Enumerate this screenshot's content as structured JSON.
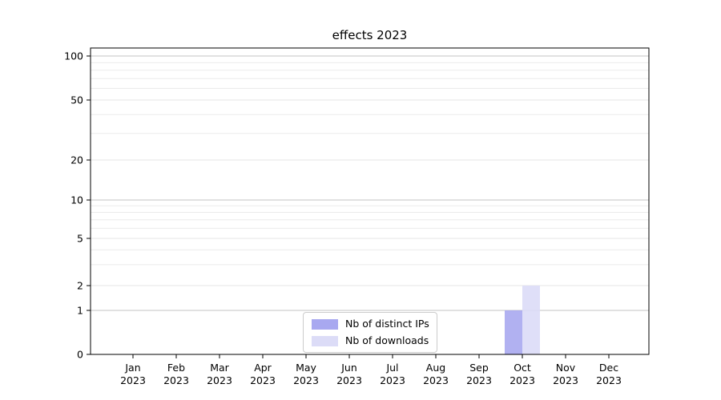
{
  "chart_data": {
    "type": "bar",
    "title": "effects 2023",
    "categories": [
      "Jan",
      "Feb",
      "Mar",
      "Apr",
      "May",
      "Jun",
      "Jul",
      "Aug",
      "Sep",
      "Oct",
      "Nov",
      "Dec"
    ],
    "x_year_label": "2023",
    "series": [
      {
        "name": "Nb of distinct IPs",
        "color": "#a8a8f0",
        "values": [
          0,
          0,
          0,
          0,
          0,
          0,
          0,
          0,
          0,
          1,
          0,
          0
        ]
      },
      {
        "name": "Nb of downloads",
        "color": "#dcdcf7",
        "values": [
          0,
          0,
          0,
          0,
          0,
          0,
          0,
          0,
          0,
          2,
          0,
          0
        ]
      }
    ],
    "y_ticks": [
      0,
      1,
      2,
      5,
      10,
      20,
      50,
      100
    ],
    "y_tick_labels": [
      "0",
      "1",
      "2",
      "5",
      "10",
      "20",
      "50",
      "100"
    ],
    "y_minor_ticks": [
      3,
      4,
      6,
      7,
      8,
      9,
      30,
      40,
      60,
      70,
      80,
      90
    ],
    "y_scale": "symlog",
    "ylim": [
      0,
      110
    ],
    "grid": "horizontal",
    "legend_position": "lower center",
    "colors": {
      "grid_major": "#c3c3c3",
      "grid_minor": "#ebebeb",
      "grid_tick": "#e4e4e4",
      "spine": "#000000",
      "text": "#000000"
    }
  }
}
